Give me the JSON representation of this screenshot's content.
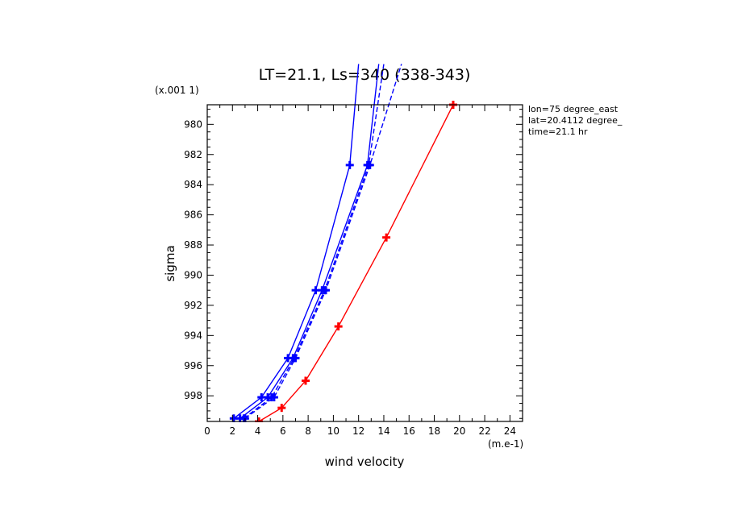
{
  "chart_data": {
    "type": "line",
    "title": "LT=21.1, Ls=340 (338-343)",
    "xlabel": "wind velocity",
    "ylabel": "sigma",
    "x_unit_label": "(m.e-1)",
    "y_unit_label": "(x.001 1)",
    "xlim": [
      0,
      25
    ],
    "ylim": [
      999.7,
      978.7
    ],
    "x_ticks": [
      0,
      2,
      4,
      6,
      8,
      10,
      12,
      14,
      16,
      18,
      20,
      22,
      24
    ],
    "y_ticks": [
      980,
      982,
      984,
      986,
      988,
      990,
      992,
      994,
      996,
      998
    ],
    "grid": false,
    "info_lines": [
      "lon=75 degree_east",
      "lat=20.4112 degree_",
      "time=21.1 hr"
    ],
    "series": [
      {
        "color": "#0000ff",
        "dash": "solid",
        "x": [
          2.1,
          4.3,
          6.4,
          8.6,
          11.3,
          12.0
        ],
        "y": [
          999.5,
          998.1,
          995.5,
          991.0,
          982.7,
          976.0
        ]
      },
      {
        "color": "#0000ff",
        "dash": "solid",
        "x": [
          2.6,
          4.8,
          6.8,
          9.1,
          12.7,
          13.6
        ],
        "y": [
          999.5,
          998.1,
          995.5,
          991.0,
          982.7,
          976.0
        ]
      },
      {
        "color": "#0000ff",
        "dash": "dash",
        "x": [
          2.9,
          5.1,
          6.9,
          9.3,
          12.8,
          14.0
        ],
        "y": [
          999.5,
          998.1,
          995.5,
          991.0,
          982.7,
          976.0
        ]
      },
      {
        "color": "#0000ff",
        "dash": "dash",
        "x": [
          3.0,
          5.3,
          7.0,
          9.4,
          12.9,
          15.4
        ],
        "y": [
          999.5,
          998.1,
          995.5,
          991.0,
          982.7,
          976.0
        ]
      },
      {
        "color": "#ff0000",
        "dash": "solid",
        "x": [
          4.1,
          5.9,
          7.8,
          10.4,
          14.2,
          19.5
        ],
        "y": [
          999.7,
          998.8,
          997.0,
          993.4,
          987.5,
          978.7
        ]
      }
    ]
  }
}
